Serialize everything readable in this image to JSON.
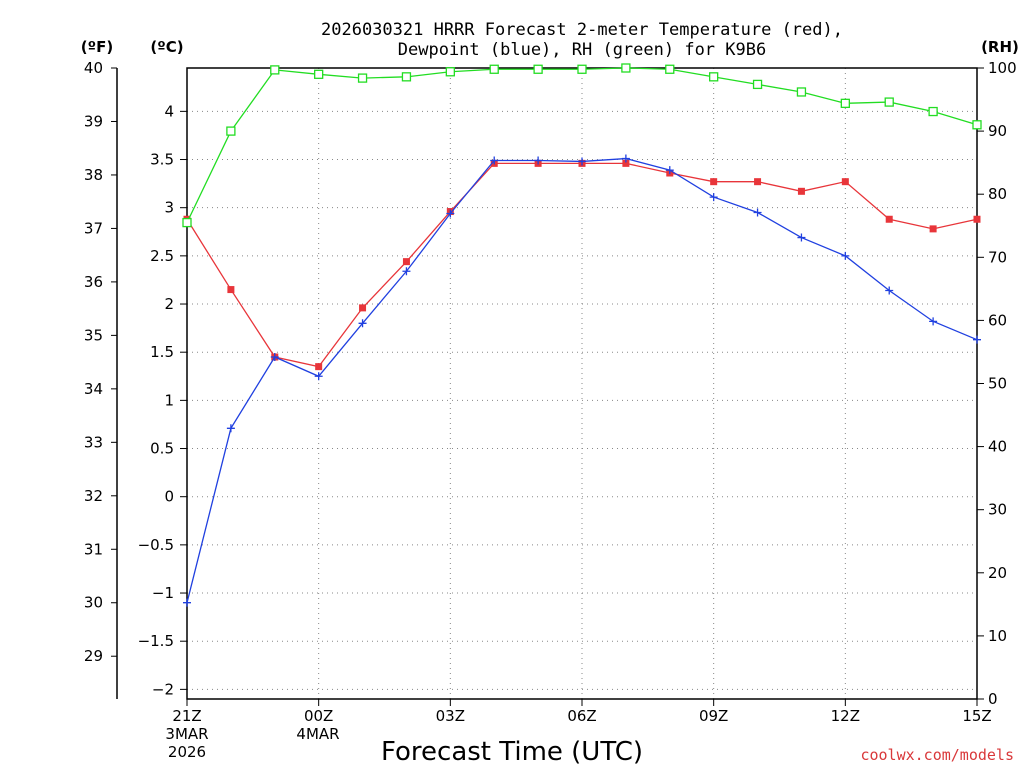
{
  "header": {
    "title_line1": "2026030321 HRRR Forecast 2-meter Temperature (red),",
    "title_line2": "Dewpoint (blue), RH (green) for K9B6",
    "unit_f": "(ºF)",
    "unit_c": "(ºC)",
    "unit_rh": "(RH)"
  },
  "footer": {
    "xlabel": "Forecast Time (UTC)",
    "credit": "coolwx.com/models",
    "date_line1": [
      "3MAR",
      "4MAR"
    ],
    "date_line2": [
      "2026"
    ]
  },
  "colors": {
    "temperature": "#e8353a",
    "dewpoint": "#2040e0",
    "rh": "#22dd22",
    "grid": "#888888"
  },
  "chart_data": {
    "type": "line",
    "x": [
      "21Z",
      "22Z",
      "23Z",
      "00Z",
      "01Z",
      "02Z",
      "03Z",
      "04Z",
      "05Z",
      "06Z",
      "07Z",
      "08Z",
      "09Z",
      "10Z",
      "11Z",
      "12Z",
      "13Z",
      "14Z",
      "15Z"
    ],
    "xticks": [
      {
        "label": "21Z",
        "index": 0
      },
      {
        "label": "00Z",
        "index": 3
      },
      {
        "label": "03Z",
        "index": 6
      },
      {
        "label": "06Z",
        "index": 9
      },
      {
        "label": "09Z",
        "index": 12
      },
      {
        "label": "12Z",
        "index": 15
      },
      {
        "label": "15Z",
        "index": 18
      }
    ],
    "yaxis_f": {
      "ticks": [
        "29",
        "30",
        "31",
        "32",
        "33",
        "34",
        "35",
        "36",
        "37",
        "38",
        "39",
        "40"
      ],
      "range": [
        28.2,
        40
      ]
    },
    "yaxis_c": {
      "ticks": [
        "−2",
        "−1.5",
        "−1",
        "−0.5",
        "0",
        "0.5",
        "1",
        "1.5",
        "2",
        "2.5",
        "3",
        "3.5",
        "4"
      ],
      "range": [
        -2.1,
        4.45
      ]
    },
    "yaxis_rh": {
      "ticks": [
        "0",
        "10",
        "20",
        "30",
        "40",
        "50",
        "60",
        "70",
        "80",
        "90",
        "100"
      ],
      "range": [
        0,
        100
      ]
    },
    "grid": true,
    "series": [
      {
        "key": "temperature",
        "marker": "filled-square",
        "axis": "c",
        "values": [
          2.88,
          2.15,
          1.45,
          1.35,
          1.96,
          2.44,
          2.96,
          3.46,
          3.46,
          3.46,
          3.46,
          3.36,
          3.27,
          3.27,
          3.17,
          3.27,
          2.88,
          2.78,
          2.88
        ]
      },
      {
        "key": "dewpoint",
        "marker": "plus",
        "axis": "c",
        "values": [
          -1.1,
          0.71,
          1.45,
          1.25,
          1.8,
          2.34,
          2.94,
          3.49,
          3.49,
          3.48,
          3.51,
          3.39,
          3.11,
          2.95,
          2.69,
          2.5,
          2.14,
          1.82,
          1.63
        ]
      },
      {
        "key": "rh",
        "marker": "open-square",
        "axis": "rh",
        "values": [
          75.5,
          90,
          99.7,
          99,
          98.4,
          98.6,
          99.4,
          99.8,
          99.8,
          99.8,
          100,
          99.8,
          98.6,
          97.4,
          96.2,
          94.4,
          94.6,
          93.1,
          91
        ]
      }
    ]
  }
}
